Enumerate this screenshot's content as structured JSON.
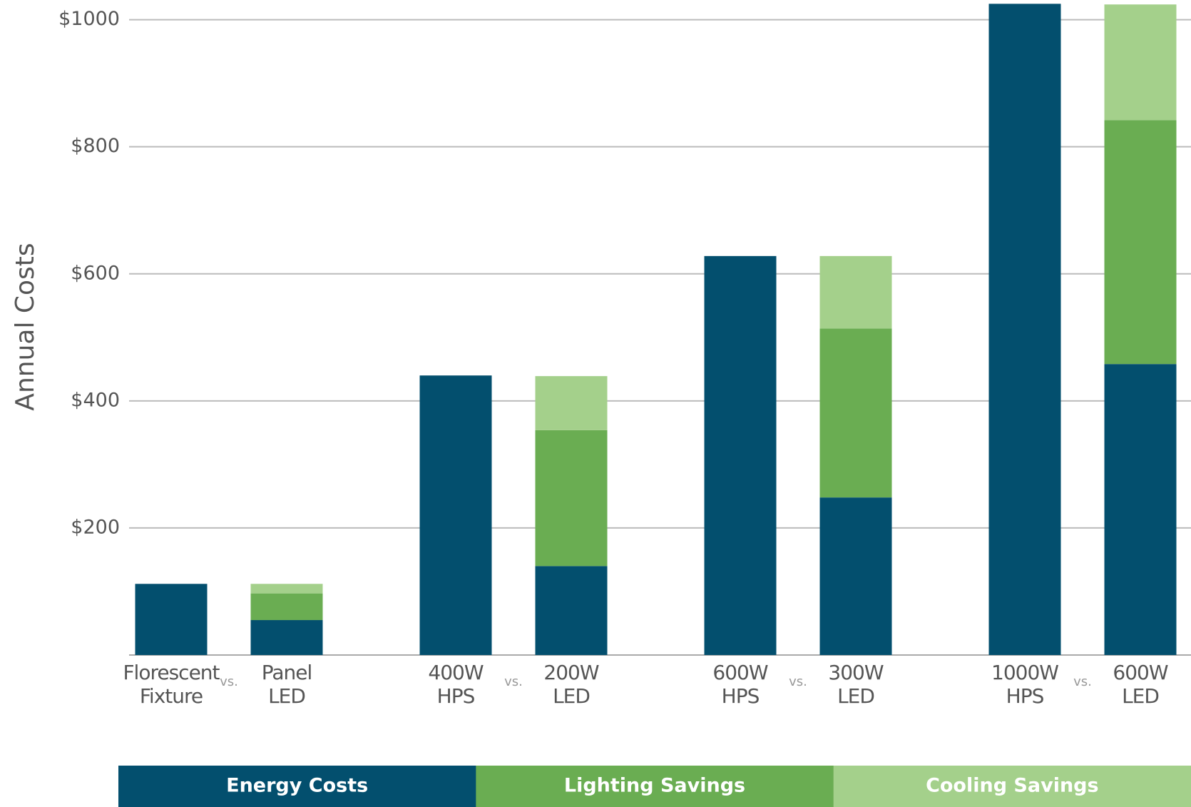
{
  "chart_data": {
    "type": "stacked_bar",
    "y_axis_label": "Annual Costs",
    "categories": [
      [
        "Florescent",
        "Fixture"
      ],
      [
        "Panel",
        "LED"
      ],
      [
        "400W",
        "HPS"
      ],
      [
        "200W",
        "LED"
      ],
      [
        "600W",
        "HPS"
      ],
      [
        "300W",
        "LED"
      ],
      [
        "1000W",
        "HPS"
      ],
      [
        "600W",
        "LED"
      ]
    ],
    "comparison_labels": [
      "vs.",
      "vs.",
      "vs.",
      "vs."
    ],
    "series": [
      {
        "name": "Energy Costs",
        "color": "#034f6e",
        "values": [
          112,
          55,
          440,
          140,
          628,
          248,
          1025,
          458
        ]
      },
      {
        "name": "Lighting Savings",
        "color": "#6aad52",
        "values": [
          0,
          42,
          0,
          214,
          0,
          266,
          0,
          384
        ]
      },
      {
        "name": "Cooling Savings",
        "color": "#a4d08b",
        "values": [
          0,
          15,
          0,
          85,
          0,
          114,
          0,
          182
        ]
      }
    ],
    "ylim": [
      0,
      1031
    ],
    "yticks": [
      {
        "value": 200,
        "label": "$200"
      },
      {
        "value": 400,
        "label": "$400"
      },
      {
        "value": 600,
        "label": "$600"
      },
      {
        "value": 800,
        "label": "$800"
      },
      {
        "value": 1000,
        "label": "$1000"
      }
    ],
    "grid": true,
    "legend": "bottom"
  }
}
